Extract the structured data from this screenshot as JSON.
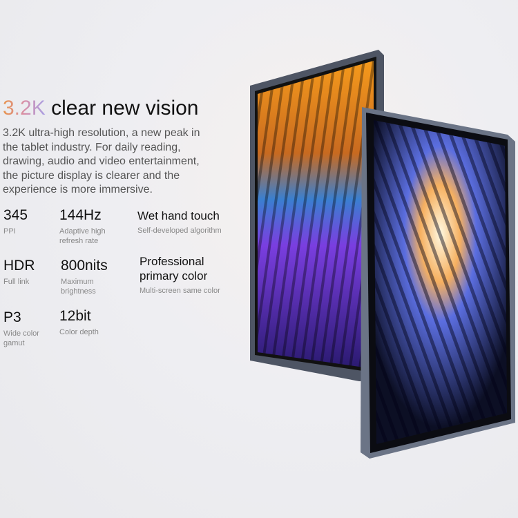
{
  "headline": {
    "highlight": "3.2K",
    "rest": "clear new vision"
  },
  "description": "3.2K ultra-high resolution, a new peak in the tablet industry. For daily reading, drawing, audio and video entertainment, the picture display is clearer and the experience is more immersive.",
  "specs": [
    {
      "value": "345",
      "label": "PPI"
    },
    {
      "value": "144Hz",
      "label": "Adaptive high refresh rate"
    },
    {
      "value": "Wet hand touch",
      "label": "Self-developed algorithm"
    },
    {
      "value": "HDR",
      "label": "Full link"
    },
    {
      "value": "800nits",
      "label": "Maximum brightness"
    },
    {
      "value": "Professional primary color",
      "label": "Multi-screen same color"
    },
    {
      "value": "P3",
      "label": "Wide color gamut"
    },
    {
      "value": "12bit",
      "label": "Color depth"
    }
  ],
  "colors": {
    "highlight_gradient": [
      "#e8944a",
      "#d88fa8",
      "#a9a0e6"
    ],
    "frame": "#5a6272"
  }
}
